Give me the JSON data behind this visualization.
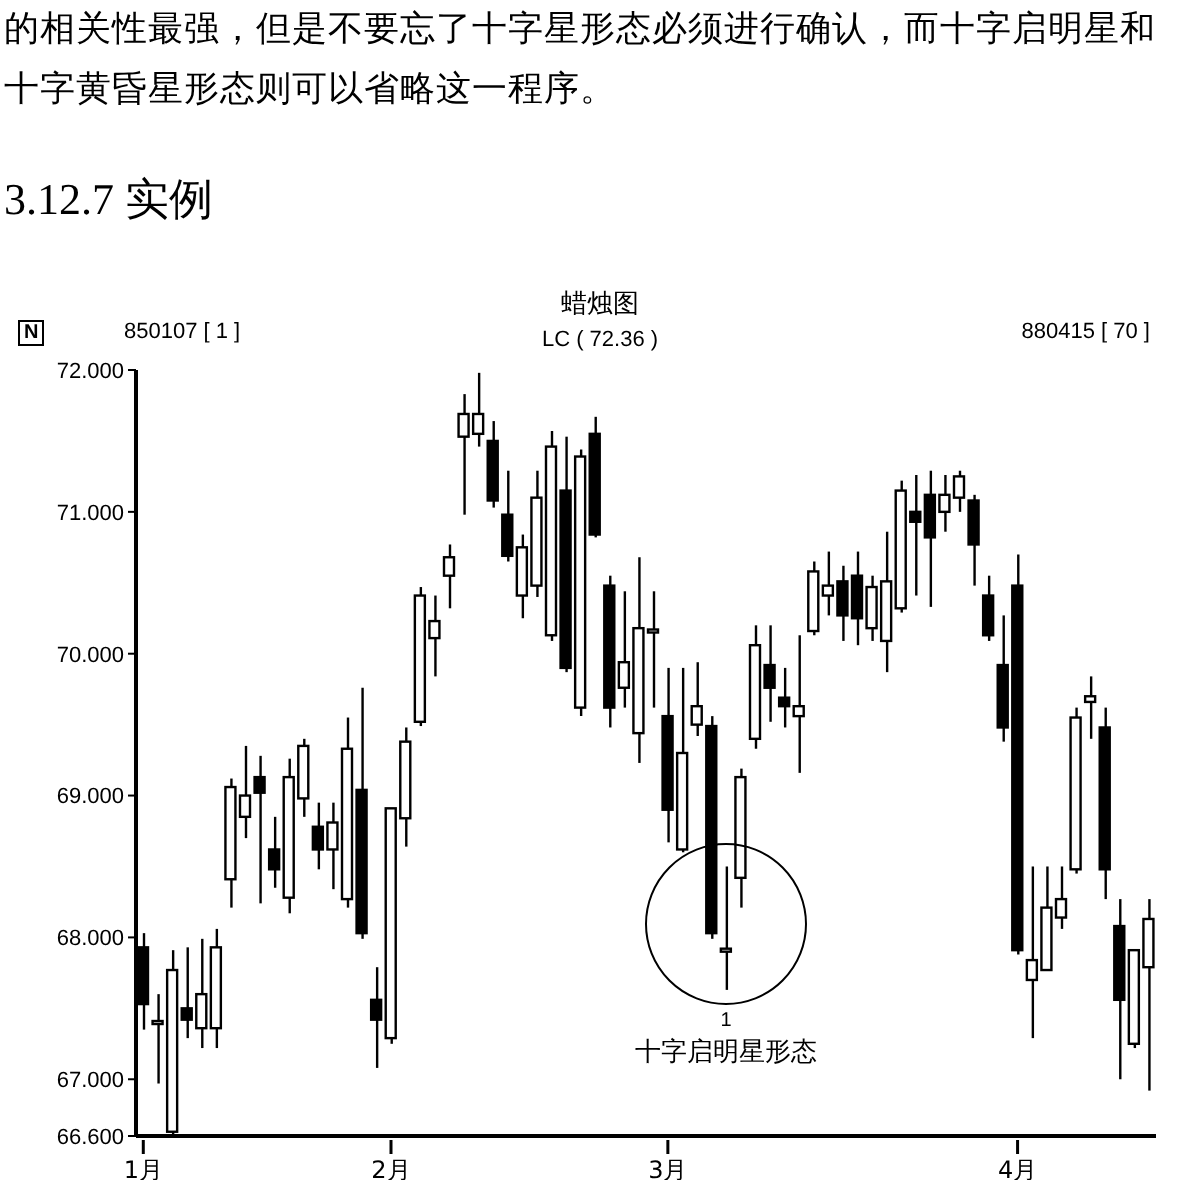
{
  "chart_data": {
    "type": "candlestick",
    "title": "蜡烛图",
    "annotations": [
      "的相关性最强，但是不要忘了十字星形态必须进行确认，而十字启明星和",
      "十字黄昏星形态则可以省略这一程序。",
      "3.12.7 实例",
      "850107 [ 1 ]",
      "LC ( 72.36 )",
      "880415 [ 70 ]",
      "1",
      "十字启明星形态",
      "N"
    ],
    "categories": [
      "1月",
      null,
      null,
      null,
      null,
      null,
      null,
      null,
      null,
      null,
      null,
      null,
      null,
      null,
      null,
      null,
      null,
      "2月",
      null,
      null,
      null,
      null,
      null,
      null,
      null,
      null,
      null,
      null,
      null,
      null,
      null,
      null,
      null,
      null,
      null,
      null,
      "3月",
      null,
      null,
      null,
      null,
      null,
      null,
      null,
      null,
      null,
      null,
      null,
      null,
      null,
      null,
      null,
      null,
      null,
      null,
      null,
      null,
      null,
      null,
      null,
      "4月",
      null,
      null,
      null,
      null,
      null,
      null,
      null,
      null,
      null
    ],
    "ohlc": [
      [
        67.93,
        68.03,
        67.35,
        67.53
      ],
      [
        67.4,
        67.6,
        66.97,
        67.4
      ],
      [
        66.63,
        67.91,
        66.6,
        67.77
      ],
      [
        67.5,
        67.93,
        67.29,
        67.42
      ],
      [
        67.36,
        67.99,
        67.22,
        67.6
      ],
      [
        67.36,
        68.06,
        67.22,
        67.93
      ],
      [
        68.41,
        69.12,
        68.21,
        69.06
      ],
      [
        68.85,
        69.35,
        68.7,
        69.0
      ],
      [
        69.13,
        69.28,
        68.24,
        69.02
      ],
      [
        68.62,
        68.85,
        68.35,
        68.48
      ],
      [
        68.28,
        69.26,
        68.17,
        69.13
      ],
      [
        68.98,
        69.4,
        68.85,
        69.35
      ],
      [
        68.78,
        68.95,
        68.48,
        68.62
      ],
      [
        68.62,
        68.95,
        68.34,
        68.81
      ],
      [
        68.27,
        69.55,
        68.21,
        69.33
      ],
      [
        69.04,
        69.76,
        67.99,
        68.03
      ],
      [
        67.56,
        67.79,
        67.08,
        67.42
      ],
      [
        67.29,
        68.91,
        67.25,
        68.91
      ],
      [
        68.84,
        69.48,
        68.64,
        69.38
      ],
      [
        69.52,
        70.47,
        69.49,
        70.41
      ],
      [
        70.11,
        70.41,
        69.84,
        70.23
      ],
      [
        70.55,
        70.77,
        70.32,
        70.68
      ],
      [
        71.53,
        71.83,
        70.98,
        71.69
      ],
      [
        71.55,
        71.98,
        71.46,
        71.69
      ],
      [
        71.5,
        71.64,
        71.03,
        71.08
      ],
      [
        70.98,
        71.29,
        70.65,
        70.69
      ],
      [
        70.41,
        70.84,
        70.25,
        70.75
      ],
      [
        70.48,
        71.29,
        70.4,
        71.1
      ],
      [
        70.13,
        71.57,
        70.09,
        71.46
      ],
      [
        71.15,
        71.53,
        69.87,
        69.9
      ],
      [
        69.62,
        71.44,
        69.56,
        71.39
      ],
      [
        71.55,
        71.67,
        70.82,
        70.84
      ],
      [
        70.48,
        70.55,
        69.48,
        69.62
      ],
      [
        69.76,
        70.44,
        69.62,
        69.94
      ],
      [
        69.44,
        70.68,
        69.23,
        70.18
      ],
      [
        70.16,
        70.44,
        69.62,
        70.16
      ],
      [
        69.56,
        69.9,
        68.67,
        68.9
      ],
      [
        68.62,
        69.9,
        68.6,
        69.3
      ],
      [
        69.5,
        69.94,
        69.42,
        69.63
      ],
      [
        69.49,
        69.56,
        67.99,
        68.03
      ],
      [
        67.91,
        68.5,
        67.63,
        67.91
      ],
      [
        68.42,
        69.19,
        68.21,
        69.13
      ],
      [
        69.4,
        70.2,
        69.33,
        70.06
      ],
      [
        69.92,
        70.2,
        69.52,
        69.76
      ],
      [
        69.69,
        69.9,
        69.48,
        69.63
      ],
      [
        69.56,
        70.13,
        69.16,
        69.63
      ],
      [
        70.16,
        70.65,
        70.13,
        70.58
      ],
      [
        70.41,
        70.72,
        70.27,
        70.48
      ],
      [
        70.51,
        70.62,
        70.09,
        70.27
      ],
      [
        70.55,
        70.72,
        70.06,
        70.25
      ],
      [
        70.18,
        70.55,
        70.09,
        70.47
      ],
      [
        70.09,
        70.86,
        69.87,
        70.51
      ],
      [
        70.32,
        71.22,
        70.29,
        71.15
      ],
      [
        71.0,
        71.26,
        70.41,
        70.93
      ],
      [
        71.12,
        71.29,
        70.33,
        70.82
      ],
      [
        71.0,
        71.26,
        70.86,
        71.12
      ],
      [
        71.1,
        71.29,
        71.0,
        71.25
      ],
      [
        71.08,
        71.12,
        70.48,
        70.77
      ],
      [
        70.41,
        70.55,
        70.09,
        70.13
      ],
      [
        69.92,
        70.27,
        69.38,
        69.48
      ],
      [
        70.48,
        70.7,
        67.88,
        67.91
      ],
      [
        67.7,
        68.5,
        67.29,
        67.84
      ],
      [
        67.77,
        68.5,
        67.77,
        68.21
      ],
      [
        68.14,
        68.5,
        68.06,
        68.27
      ],
      [
        68.48,
        69.62,
        68.45,
        69.55
      ],
      [
        69.66,
        69.84,
        69.4,
        69.7
      ],
      [
        69.48,
        69.62,
        68.27,
        68.48
      ],
      [
        68.08,
        68.27,
        67.0,
        67.56
      ],
      [
        67.25,
        67.91,
        67.22,
        67.91
      ],
      [
        67.79,
        68.27,
        66.92,
        68.13
      ]
    ],
    "ylim": [
      66.6,
      72
    ],
    "yticks": [
      {
        "value": 72,
        "label": "72.000"
      },
      {
        "value": 71,
        "label": "71.000"
      },
      {
        "value": 70,
        "label": "70.000"
      },
      {
        "value": 69,
        "label": "69.000"
      },
      {
        "value": 68,
        "label": "68.000"
      },
      {
        "value": 67,
        "label": "67.000"
      },
      {
        "value": 66.6,
        "label": "66.600"
      }
    ]
  }
}
